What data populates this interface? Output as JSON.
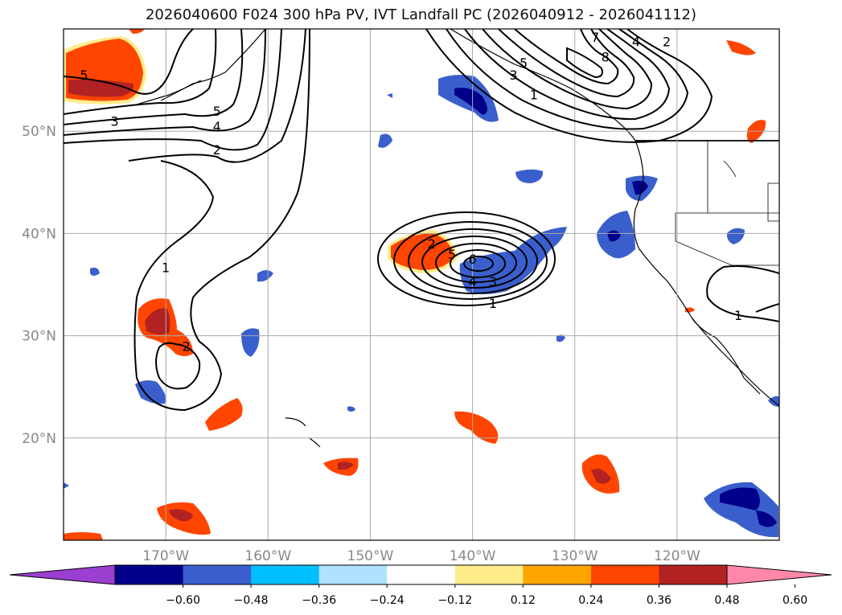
{
  "title": "2026040600 F024 300 hPa PV, IVT Landfall PC (2026040912 - 2026041112)",
  "map": {
    "lon_range": [
      -180,
      -110
    ],
    "lat_range": [
      10,
      60
    ],
    "lon_ticks": [
      {
        "value": -170,
        "label": "170°W"
      },
      {
        "value": -160,
        "label": "160°W"
      },
      {
        "value": -150,
        "label": "150°W"
      },
      {
        "value": -140,
        "label": "140°W"
      },
      {
        "value": -130,
        "label": "130°W"
      },
      {
        "value": -120,
        "label": "120°W"
      }
    ],
    "lat_ticks": [
      {
        "value": 20,
        "label": "20°N"
      },
      {
        "value": 30,
        "label": "30°N"
      },
      {
        "value": 40,
        "label": "40°N"
      },
      {
        "value": 50,
        "label": "50°N"
      }
    ],
    "grid": true
  },
  "colorbar": {
    "levels": [
      -0.6,
      -0.48,
      -0.36,
      -0.24,
      -0.12,
      0.12,
      0.24,
      0.36,
      0.48,
      0.6
    ],
    "labels": [
      "−0.60",
      "−0.48",
      "−0.36",
      "−0.24",
      "−0.12",
      "0.12",
      "0.24",
      "0.36",
      "0.48",
      "0.60"
    ],
    "colors": [
      "#9a3fcf",
      "#00008b",
      "#3a5fcd",
      "#00bfff",
      "#b0e2ff",
      "#ffffff",
      "#ffec8b",
      "#ffa500",
      "#ff4500",
      "#b22222",
      "#ff88aa"
    ]
  },
  "contour_labels": [
    {
      "text": "5",
      "lon": -178,
      "lat": 55.5
    },
    {
      "text": "3",
      "lon": -175,
      "lat": 51
    },
    {
      "text": "5",
      "lon": -165,
      "lat": 52
    },
    {
      "text": "4",
      "lon": -165,
      "lat": 50.5
    },
    {
      "text": "2",
      "lon": -165,
      "lat": 48.2
    },
    {
      "text": "1",
      "lon": -170,
      "lat": 36.7
    },
    {
      "text": "2",
      "lon": -168,
      "lat": 29
    },
    {
      "text": "2",
      "lon": -144,
      "lat": 39
    },
    {
      "text": "5",
      "lon": -142,
      "lat": 38
    },
    {
      "text": "6",
      "lon": -140,
      "lat": 37.5
    },
    {
      "text": "4",
      "lon": -140,
      "lat": 35.3
    },
    {
      "text": "3",
      "lon": -138,
      "lat": 35.3
    },
    {
      "text": "1",
      "lon": -138,
      "lat": 33.2
    },
    {
      "text": "3",
      "lon": -136,
      "lat": 55.5
    },
    {
      "text": "5",
      "lon": -135,
      "lat": 56.7
    },
    {
      "text": "1",
      "lon": -134,
      "lat": 53.6
    },
    {
      "text": "7",
      "lon": -128,
      "lat": 59.2
    },
    {
      "text": "8",
      "lon": -127,
      "lat": 57.3
    },
    {
      "text": "4",
      "lon": -124,
      "lat": 58.8
    },
    {
      "text": "2",
      "lon": -121,
      "lat": 58.8
    },
    {
      "text": "1",
      "lon": -114,
      "lat": 32
    }
  ]
}
